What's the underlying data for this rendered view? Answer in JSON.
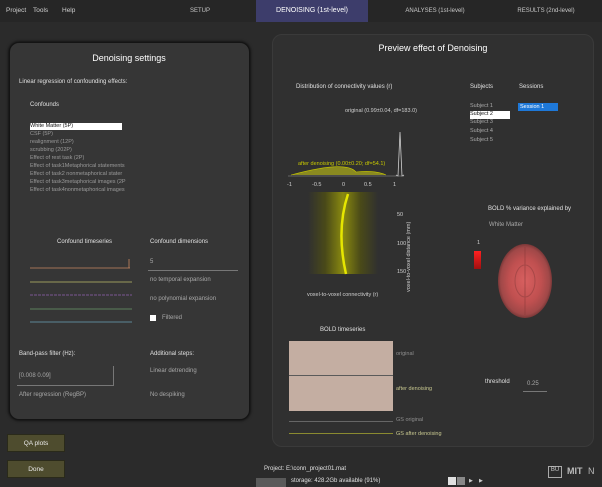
{
  "menus": [
    "Project",
    "Tools",
    "Help"
  ],
  "tabs": [
    {
      "label": "SETUP"
    },
    {
      "label": "DENOISING (1st-level)"
    },
    {
      "label": "ANALYSES (1st-level)"
    },
    {
      "label": "RESULTS (2nd-level)"
    }
  ],
  "left": {
    "title": "Denoising settings",
    "subtitle": "Linear regression of confounding effects:",
    "confounds_label": "Confounds",
    "confounds": [
      "White Matter (5P)",
      "CSF (5P)",
      "realignment (12P)",
      "scrubbing (202P)",
      "Effect of rest task (2P)",
      "Effect of task1Metaphorical statements",
      "Effect of task2 nonmetaphorical stater",
      "Effect of task3metaphorical images (2P",
      "Effect of task4nonmetaphorical images"
    ],
    "timeseries_label": "Confound timeseries",
    "dimensions_label": "Confound dimensions",
    "dimensions_value": "5",
    "temporal_expansion": "no temporal expansion",
    "polynomial_expansion": "no polynomial expansion",
    "filtered_label": "Filtered",
    "bandpass_label": "Band-pass filter (Hz):",
    "bandpass_value": "[0.008 0.09]",
    "after_regression": "After regression (RegBP)",
    "additional_label": "Additional steps:",
    "linear_detrending": "Linear detrending",
    "no_despiking": "No despiking"
  },
  "buttons": {
    "qa": "QA plots",
    "done": "Done"
  },
  "right": {
    "title": "Preview effect of Denoising",
    "dist_title": "Distribution of connectivity values (r)",
    "original_stats": "original (0.99±0.04, df=183.0)",
    "after_stats": "after denoising (0.00±0.20; df=54.1)",
    "x_ticks": [
      "-1",
      "-0.5",
      "0",
      "0.5",
      "1"
    ],
    "y_ticks": [
      "50",
      "100",
      "150"
    ],
    "ylabel": "voxel-to-voxel distance (mm)",
    "xlabel": "voxel-to-voxel connectivity (r)",
    "subjects_label": "Subjects",
    "subjects": [
      "Subject 1",
      "Subject 2",
      "Subject 3",
      "Subject 4",
      "Subject 5"
    ],
    "sessions_label": "Sessions",
    "sessions": [
      "Session 1"
    ],
    "bold_var_title": "BOLD % variance explained by",
    "bold_var_sub": "White Matter",
    "colorbar_value": "1",
    "bold_ts_title": "BOLD timeseries",
    "ts_original": "original",
    "ts_after": "after denoising",
    "gs_original": "GS original",
    "gs_after": "GS after denoising",
    "threshold_label": "threshold",
    "threshold_value": "0.25"
  },
  "footer": {
    "project": "Project: E:\\conn_project01.mat",
    "storage": "storage: 428.2Gb available (91%)"
  },
  "colors": {
    "active_tab": "#3d3d6b",
    "session_sel": "#1e78d8",
    "button": "#4e4c2e",
    "density": "#c8c800"
  }
}
